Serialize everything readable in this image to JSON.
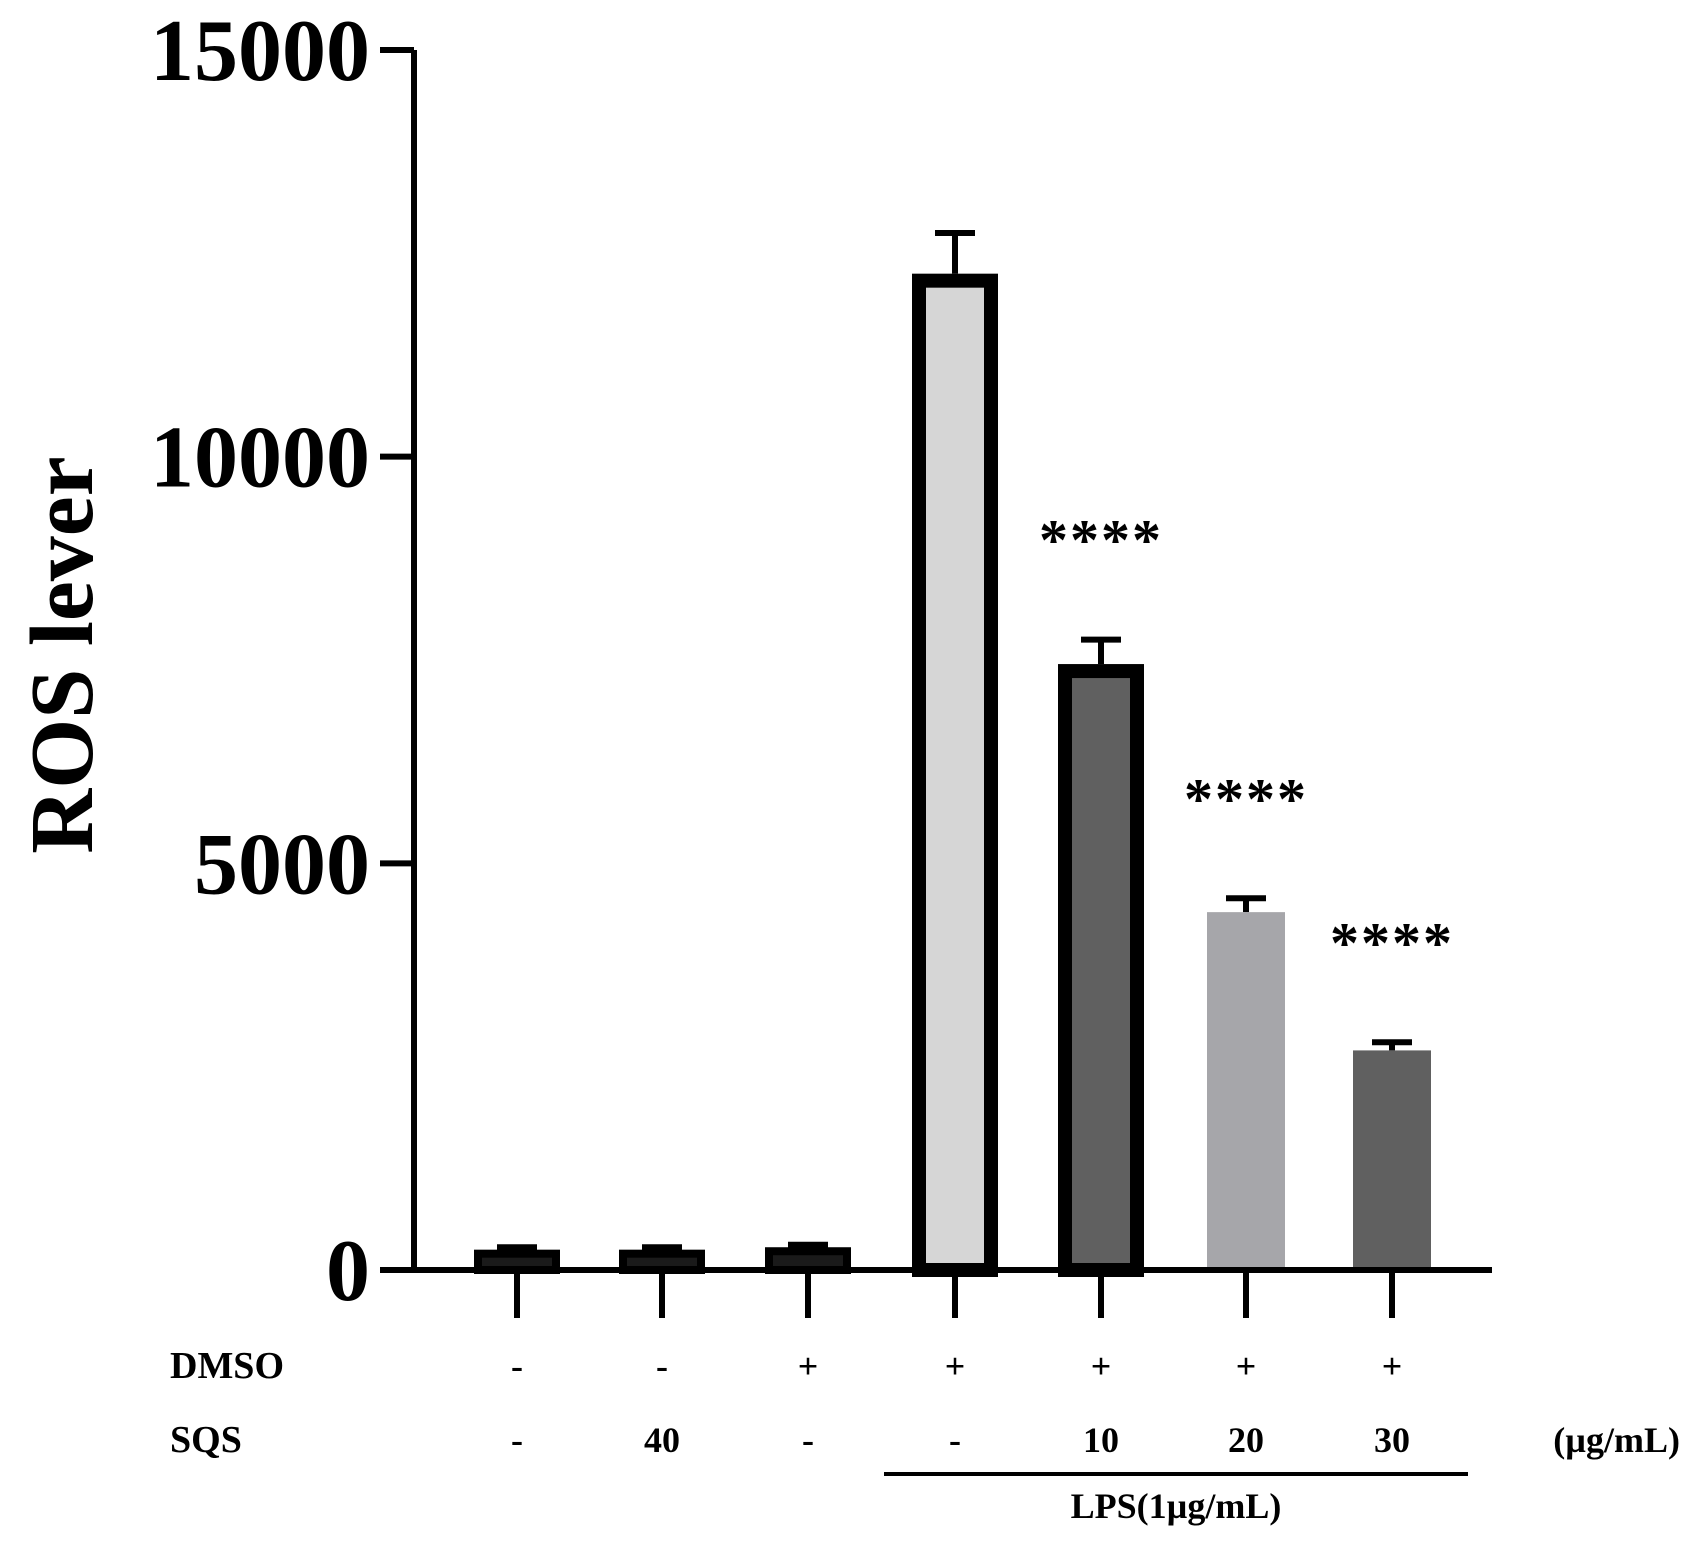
{
  "chart_data": {
    "type": "bar",
    "ylabel": "ROS lever",
    "ylim": [
      0,
      15000
    ],
    "yticks": [
      "0",
      "5000",
      "10000",
      "15000"
    ],
    "grid": false,
    "bars": [
      {
        "value": 250,
        "error": 30,
        "fill": "#1a1a1a",
        "significance": ""
      },
      {
        "value": 250,
        "error": 30,
        "fill": "#1a1a1a",
        "significance": ""
      },
      {
        "value": 280,
        "error": 30,
        "fill": "#1a1a1a",
        "significance": ""
      },
      {
        "value": 12250,
        "error": 500,
        "fill": "#d6d6d6",
        "significance": ""
      },
      {
        "value": 7450,
        "error": 300,
        "fill": "#606060",
        "significance": "****"
      },
      {
        "value": 4400,
        "error": 170,
        "fill": "#a6a6aa",
        "significance": "****"
      },
      {
        "value": 2700,
        "error": 100,
        "fill": "#606060",
        "significance": "****"
      }
    ],
    "rows": [
      {
        "label": "DMSO",
        "values": [
          "-",
          "-",
          "+",
          "+",
          "+",
          "+",
          "+"
        ],
        "unit": ""
      },
      {
        "label": "SQS",
        "values": [
          "-",
          "40",
          "-",
          "-",
          "10",
          "20",
          "30"
        ],
        "unit": "(µg/mL)"
      }
    ],
    "group_label": "LPS(1µg/mL)"
  }
}
